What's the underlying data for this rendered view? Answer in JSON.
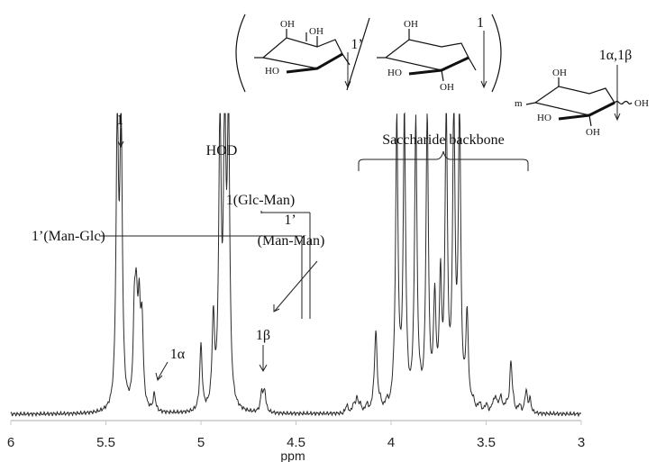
{
  "chart_data": {
    "type": "line",
    "title": "",
    "xlabel": "ppm",
    "ylabel": "",
    "xlim": [
      6,
      3
    ],
    "x_reversed": true,
    "grid": false,
    "x_ticks": [
      6,
      5.5,
      5,
      4.5,
      4,
      3.5,
      3
    ],
    "x_tick_labels": [
      "6",
      "5.5",
      "5",
      "4.5",
      "4",
      "3.5",
      "3"
    ],
    "series": [
      {
        "peaks": [
          {
            "ppm": 5.44,
            "intensity": 1.0
          },
          {
            "ppm": 5.42,
            "intensity": 1.0
          },
          {
            "ppm": 5.35,
            "intensity": 0.29
          },
          {
            "ppm": 5.34,
            "intensity": 0.31
          },
          {
            "ppm": 5.325,
            "intensity": 0.32
          },
          {
            "ppm": 5.31,
            "intensity": 0.29
          },
          {
            "ppm": 5.245,
            "intensity": 0.06
          },
          {
            "ppm": 5.0,
            "intensity": 0.23
          },
          {
            "ppm": 4.935,
            "intensity": 0.31
          },
          {
            "ppm": 4.9,
            "intensity": 1.0
          },
          {
            "ppm": 4.875,
            "intensity": 1.0
          },
          {
            "ppm": 4.855,
            "intensity": 1.0
          },
          {
            "ppm": 4.68,
            "intensity": 0.07
          },
          {
            "ppm": 4.665,
            "intensity": 0.07
          },
          {
            "ppm": 4.18,
            "intensity": 0.05
          },
          {
            "ppm": 4.08,
            "intensity": 0.28
          },
          {
            "ppm": 3.97,
            "intensity": 1.0
          },
          {
            "ppm": 3.93,
            "intensity": 1.0
          },
          {
            "ppm": 3.87,
            "intensity": 1.0
          },
          {
            "ppm": 3.81,
            "intensity": 1.0
          },
          {
            "ppm": 3.77,
            "intensity": 0.35
          },
          {
            "ppm": 3.74,
            "intensity": 0.4
          },
          {
            "ppm": 3.71,
            "intensity": 1.0
          },
          {
            "ppm": 3.67,
            "intensity": 1.0
          },
          {
            "ppm": 3.64,
            "intensity": 1.0
          },
          {
            "ppm": 3.6,
            "intensity": 0.3
          },
          {
            "ppm": 3.45,
            "intensity": 0.05
          },
          {
            "ppm": 3.42,
            "intensity": 0.04
          },
          {
            "ppm": 3.37,
            "intensity": 0.17
          },
          {
            "ppm": 3.29,
            "intensity": 0.05
          },
          {
            "ppm": 3.27,
            "intensity": 0.05
          }
        ]
      }
    ],
    "annotations": [
      {
        "label": "1",
        "ppm": 5.43
      },
      {
        "label": "1(Glc-Man)",
        "ppm": 5.33
      },
      {
        "label": "1’(Man-Glc)",
        "ppm": 5.345
      },
      {
        "label_line1": "1’",
        "label_line2": "(Man-Man)",
        "ppm": 5.31
      },
      {
        "label": "1α",
        "ppm": 5.245
      },
      {
        "label": "HOD",
        "ppm": 4.88
      },
      {
        "label": "1β",
        "ppm": 4.67
      },
      {
        "label": "Saccharide backbone",
        "ppm_from": 4.22,
        "ppm_to": 3.3
      }
    ],
    "structures": {
      "unit_prime_label": "1’",
      "unit_label": "1",
      "end_label": "1α,1β",
      "repeat_subscript": "m",
      "oh": "OH",
      "ho": "HO",
      "end_oh": "OH"
    }
  },
  "colors": {
    "trace": "#2b2b2b",
    "axis": "#c8c8c8",
    "text": "#111111"
  }
}
